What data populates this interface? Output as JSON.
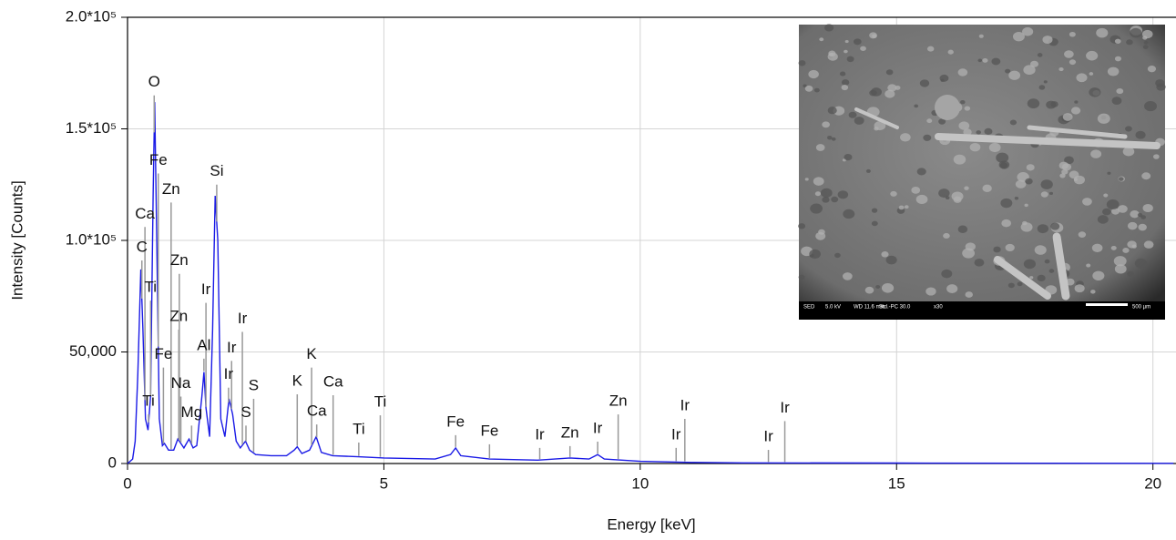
{
  "chart_data": {
    "type": "line",
    "xlabel": "Energy [keV]",
    "ylabel": "Intensity [Counts]",
    "xlim": [
      0,
      20.45
    ],
    "ylim": [
      0,
      200000
    ],
    "xticks": [
      0,
      5,
      10,
      15,
      20
    ],
    "yticks": [
      0,
      {
        "value": 50000,
        "label": "50,000"
      },
      {
        "value": 100000,
        "label": "1.0*10⁵"
      },
      {
        "value": 150000,
        "label": "1.5*10⁵"
      },
      {
        "value": 200000,
        "label": "2.0*10⁵"
      }
    ],
    "grid": true,
    "series": [
      {
        "color": "#1a1ae6",
        "x": [
          0,
          0.1,
          0.15,
          0.2,
          0.26,
          0.3,
          0.35,
          0.4,
          0.45,
          0.5,
          0.53,
          0.57,
          0.62,
          0.68,
          0.72,
          0.8,
          0.9,
          0.98,
          1.04,
          1.1,
          1.2,
          1.28,
          1.35,
          1.45,
          1.49,
          1.53,
          1.6,
          1.66,
          1.71,
          1.76,
          1.82,
          1.9,
          1.98,
          2.05,
          2.12,
          2.2,
          2.3,
          2.38,
          2.5,
          2.8,
          3.1,
          3.25,
          3.31,
          3.4,
          3.55,
          3.68,
          3.78,
          4.0,
          4.5,
          5.0,
          6.0,
          6.3,
          6.4,
          6.5,
          7.06,
          8.0,
          8.63,
          9.0,
          9.17,
          9.3,
          10,
          11,
          12,
          15,
          20.4
        ],
        "values": [
          0,
          2000,
          10000,
          40000,
          87000,
          60000,
          20000,
          15000,
          30000,
          120000,
          162000,
          100000,
          20000,
          8000,
          9000,
          6000,
          6000,
          11000,
          9000,
          7000,
          11000,
          7000,
          8000,
          30000,
          41000,
          25000,
          12000,
          60000,
          120000,
          100000,
          20000,
          12000,
          29000,
          22000,
          10000,
          7000,
          10000,
          6000,
          4000,
          3500,
          3500,
          6000,
          7500,
          4500,
          6000,
          12000,
          5000,
          3500,
          3000,
          2500,
          2000,
          4000,
          7000,
          3500,
          2000,
          1500,
          2500,
          2000,
          4000,
          2000,
          1000,
          500,
          300,
          200,
          100
        ]
      }
    ],
    "annotations": [
      {
        "label": "O",
        "x": 0.52,
        "y": 165000
      },
      {
        "label": "Fe",
        "x": 0.6,
        "y": 130000
      },
      {
        "label": "Si",
        "x": 1.74,
        "y": 125000
      },
      {
        "label": "Zn",
        "x": 0.85,
        "y": 117000
      },
      {
        "label": "Ca",
        "x": 0.34,
        "y": 106000
      },
      {
        "label": "C",
        "x": 0.28,
        "y": 91000
      },
      {
        "label": "Zn",
        "x": 1.01,
        "y": 85000
      },
      {
        "label": "Ti",
        "x": 0.45,
        "y": 73000
      },
      {
        "label": "Ir",
        "x": 1.53,
        "y": 72000
      },
      {
        "label": "Zn",
        "x": 1.0,
        "y": 60000
      },
      {
        "label": "Ir",
        "x": 2.24,
        "y": 59000
      },
      {
        "label": "Al",
        "x": 1.49,
        "y": 47000
      },
      {
        "label": "Ir",
        "x": 2.03,
        "y": 46000
      },
      {
        "label": "Fe",
        "x": 0.7,
        "y": 43000
      },
      {
        "label": "K",
        "x": 3.59,
        "y": 43000
      },
      {
        "label": "Ir",
        "x": 1.97,
        "y": 34000
      },
      {
        "label": "K",
        "x": 3.31,
        "y": 31000
      },
      {
        "label": "Ca",
        "x": 4.01,
        "y": 30600
      },
      {
        "label": "Na",
        "x": 1.04,
        "y": 30000
      },
      {
        "label": "S",
        "x": 2.46,
        "y": 29000
      },
      {
        "label": "Ti",
        "x": 0.41,
        "y": 22000
      },
      {
        "label": "Zn",
        "x": 9.57,
        "y": 22000
      },
      {
        "label": "Ti",
        "x": 4.93,
        "y": 21600
      },
      {
        "label": "Ir",
        "x": 10.87,
        "y": 20000
      },
      {
        "label": "Ir",
        "x": 12.82,
        "y": 19000
      },
      {
        "label": "Ca",
        "x": 3.69,
        "y": 17500
      },
      {
        "label": "Mg",
        "x": 1.25,
        "y": 17000
      },
      {
        "label": "S",
        "x": 2.31,
        "y": 17000
      },
      {
        "label": "Fe",
        "x": 6.4,
        "y": 12700
      },
      {
        "label": "Ir",
        "x": 9.17,
        "y": 9800
      },
      {
        "label": "Ti",
        "x": 4.51,
        "y": 9400
      },
      {
        "label": "Fe",
        "x": 7.06,
        "y": 8600
      },
      {
        "label": "Zn",
        "x": 8.63,
        "y": 7800
      },
      {
        "label": "Ir",
        "x": 8.04,
        "y": 7000
      },
      {
        "label": "Ir",
        "x": 10.7,
        "y": 7000
      },
      {
        "label": "Ir",
        "x": 12.5,
        "y": 6100
      }
    ],
    "inset_caption": [
      "SED",
      "5.0 kV",
      "WD 11.6 mm",
      "Std.-PC 30.0",
      "x30",
      "500 µm"
    ]
  }
}
